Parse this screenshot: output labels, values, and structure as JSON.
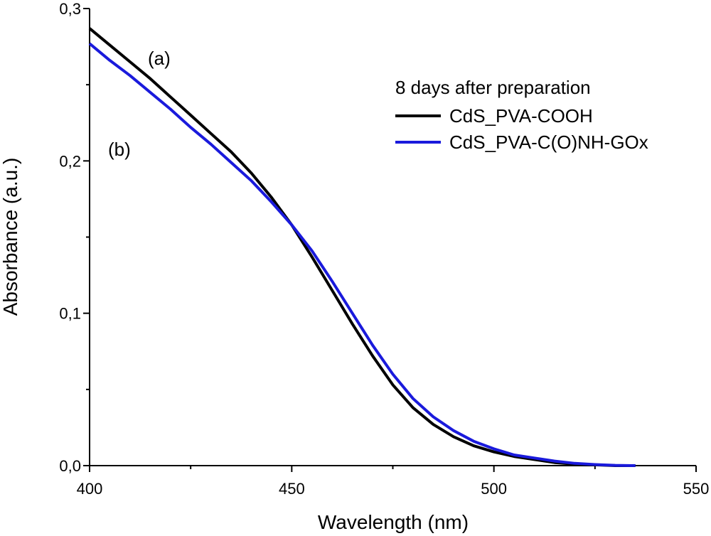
{
  "chart_data": {
    "type": "line",
    "title": "",
    "xlabel": "Wavelength (nm)",
    "ylabel": "Absorbance (a.u.)",
    "xlim": [
      400,
      550
    ],
    "ylim": [
      0.0,
      0.3
    ],
    "x_ticks": [
      400,
      450,
      500,
      550
    ],
    "x_tick_labels": [
      "400",
      "450",
      "500",
      "550"
    ],
    "y_ticks": [
      0.0,
      0.1,
      0.2,
      0.3
    ],
    "y_tick_labels": [
      "0,0",
      "0,1",
      "0,2",
      "0,3"
    ],
    "grid": false,
    "legend": {
      "title": "8 days after preparation",
      "placement": "top-right"
    },
    "annotations": [
      {
        "text": "(a)",
        "x": 418,
        "y": 0.268
      },
      {
        "text": "(b)",
        "x": 408,
        "y": 0.2
      }
    ],
    "series": [
      {
        "name": "CdS_PVA-COOH",
        "color": "#000000",
        "x": [
          400,
          405,
          410,
          415,
          420,
          425,
          430,
          435,
          440,
          445,
          450,
          455,
          460,
          465,
          470,
          475,
          480,
          485,
          490,
          495,
          500,
          505,
          510,
          515,
          520,
          525,
          530,
          535
        ],
        "y": [
          0.287,
          0.276,
          0.265,
          0.254,
          0.242,
          0.23,
          0.218,
          0.206,
          0.192,
          0.176,
          0.158,
          0.137,
          0.115,
          0.093,
          0.072,
          0.053,
          0.038,
          0.027,
          0.019,
          0.013,
          0.009,
          0.006,
          0.004,
          0.002,
          0.001,
          0.0005,
          0.0,
          0.0
        ]
      },
      {
        "name": "CdS_PVA-C(O)NH-GOx",
        "color": "#1a1adc",
        "x": [
          400,
          405,
          410,
          415,
          420,
          425,
          430,
          435,
          440,
          445,
          450,
          455,
          460,
          465,
          470,
          475,
          480,
          485,
          490,
          495,
          500,
          505,
          510,
          515,
          520,
          525,
          530,
          535
        ],
        "y": [
          0.277,
          0.266,
          0.256,
          0.245,
          0.234,
          0.222,
          0.211,
          0.199,
          0.187,
          0.173,
          0.158,
          0.141,
          0.121,
          0.1,
          0.079,
          0.06,
          0.044,
          0.032,
          0.023,
          0.016,
          0.011,
          0.007,
          0.005,
          0.003,
          0.0015,
          0.0007,
          0.0002,
          0.0
        ]
      }
    ]
  }
}
